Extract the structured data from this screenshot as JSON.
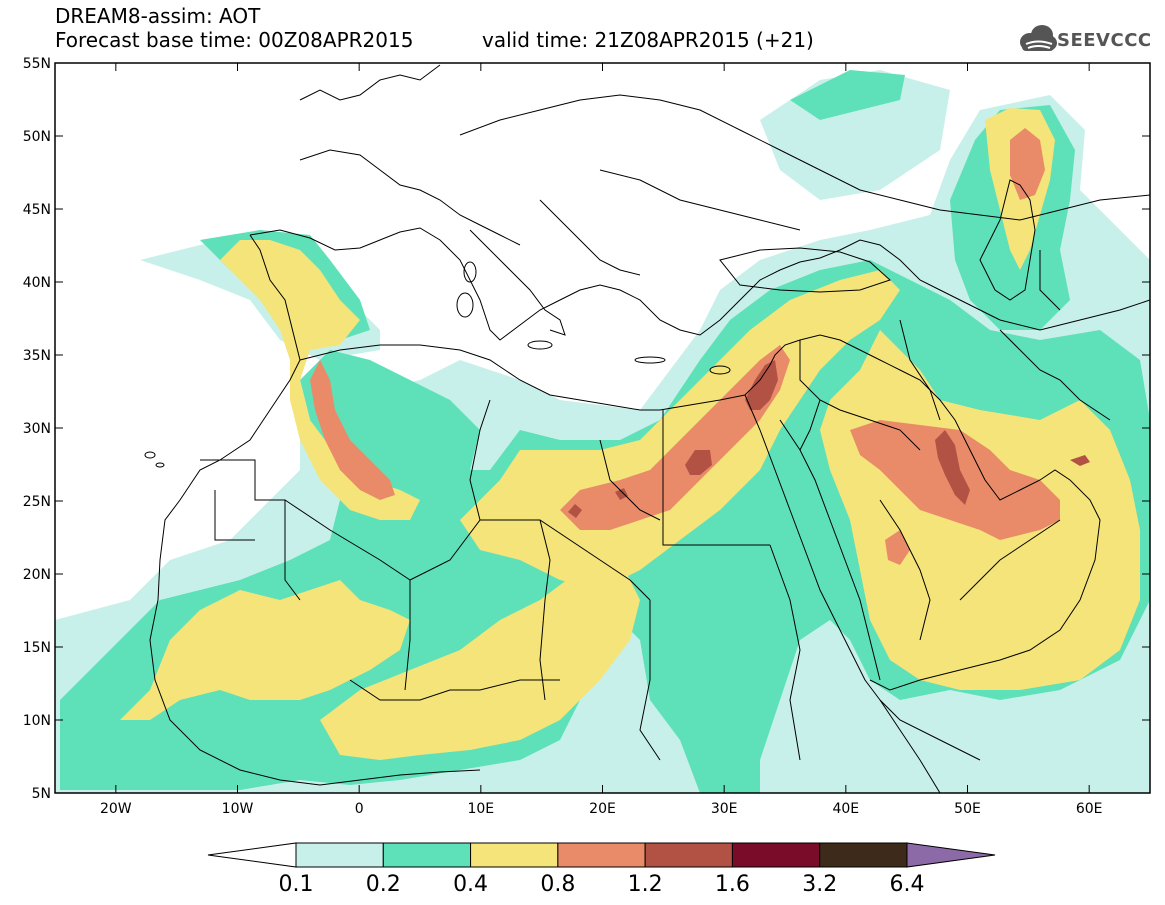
{
  "header": {
    "title": "DREAM8-assim: AOT",
    "base_time": "Forecast base time: 00Z08APR2015",
    "valid_time": "valid time: 21Z08APR2015 (+21)"
  },
  "logo": {
    "text": "SEEVCCC",
    "icon": "cloud-icon"
  },
  "map": {
    "lat_labels": [
      "55N",
      "50N",
      "45N",
      "40N",
      "35N",
      "30N",
      "25N",
      "20N",
      "15N",
      "10N",
      "5N"
    ],
    "lon_labels": [
      "20W",
      "10W",
      "0",
      "10E",
      "20E",
      "30E",
      "40E",
      "50E",
      "60E"
    ],
    "lon_range": [
      -25,
      65
    ],
    "lat_range": [
      5,
      55
    ]
  },
  "colorbar": {
    "labels": [
      "0.1",
      "0.2",
      "0.4",
      "0.8",
      "1.2",
      "1.6",
      "3.2",
      "6.4"
    ],
    "colors": [
      "#ffffff",
      "#c8f0ea",
      "#5ee0b8",
      "#f5e47a",
      "#e98b68",
      "#b25245",
      "#7a0c2a",
      "#3d2a1a",
      "#8c6aa8"
    ]
  }
}
